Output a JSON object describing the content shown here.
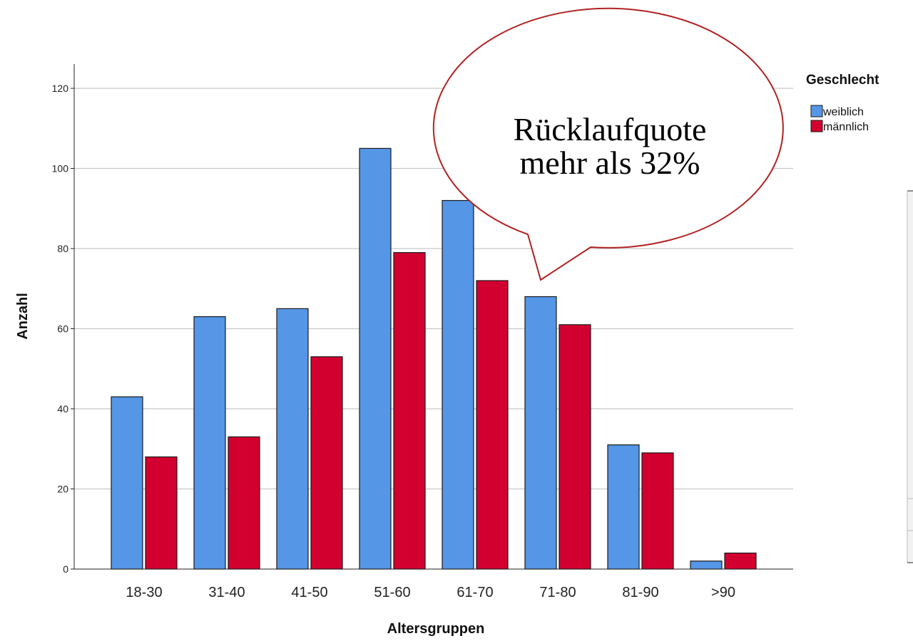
{
  "chart_data": {
    "type": "bar",
    "categories": [
      "18-30",
      "31-40",
      "41-50",
      "51-60",
      "61-70",
      "71-80",
      "81-90",
      ">90"
    ],
    "series": [
      {
        "name": "weiblich",
        "values": [
          43,
          63,
          65,
          105,
          92,
          68,
          31,
          2
        ],
        "color": "#5596E6"
      },
      {
        "name": "männlich",
        "values": [
          28,
          33,
          53,
          79,
          72,
          61,
          29,
          4
        ],
        "color": "#D2002F"
      }
    ],
    "xlabel": "Altersgruppen",
    "ylabel": "Anzahl",
    "ylim": [
      0,
      120
    ],
    "yticks": [
      0,
      20,
      40,
      60,
      80,
      100,
      120
    ],
    "grid": true,
    "legend": {
      "title": "Geschlecht",
      "position": "top-right"
    },
    "annotation": {
      "line1": "Rücklaufquote",
      "line2": "mehr als 32%",
      "border_color": "#B22222"
    }
  }
}
